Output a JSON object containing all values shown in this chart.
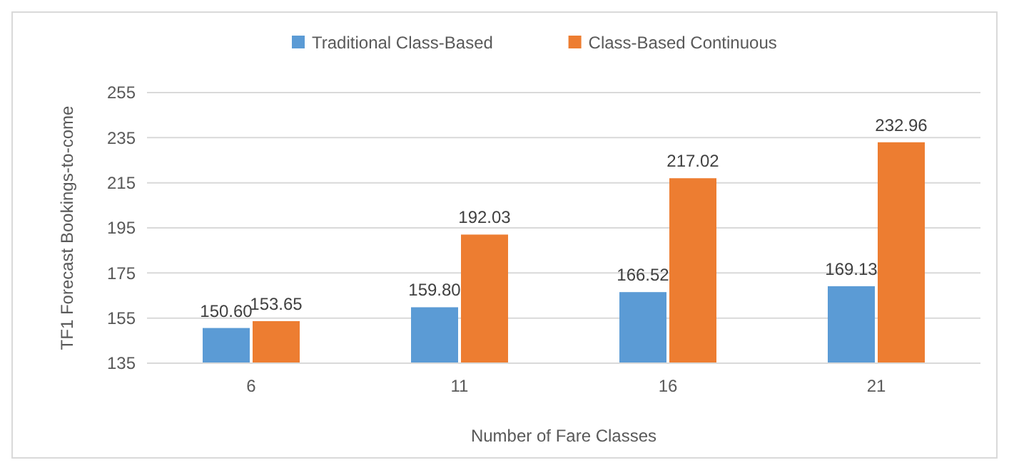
{
  "chart_data": {
    "type": "bar",
    "xlabel": "Number of Fare Classes",
    "ylabel": "TF1 Forecast Bookings-to-come",
    "categories": [
      "6",
      "11",
      "16",
      "21"
    ],
    "series": [
      {
        "name": "Traditional Class-Based",
        "color": "#5b9bd5",
        "values": [
          150.6,
          159.8,
          166.52,
          169.13
        ],
        "value_labels": [
          "150.60",
          "159.80",
          "166.52",
          "169.13"
        ]
      },
      {
        "name": "Class-Based Continuous",
        "color": "#ed7d31",
        "values": [
          153.65,
          192.03,
          217.02,
          232.96
        ],
        "value_labels": [
          "153.65",
          "192.03",
          "217.02",
          "232.96"
        ]
      }
    ],
    "ylim": [
      135,
      255
    ],
    "yticks": [
      135,
      155,
      175,
      195,
      215,
      235,
      255
    ],
    "grid": "y",
    "legend": "top"
  }
}
